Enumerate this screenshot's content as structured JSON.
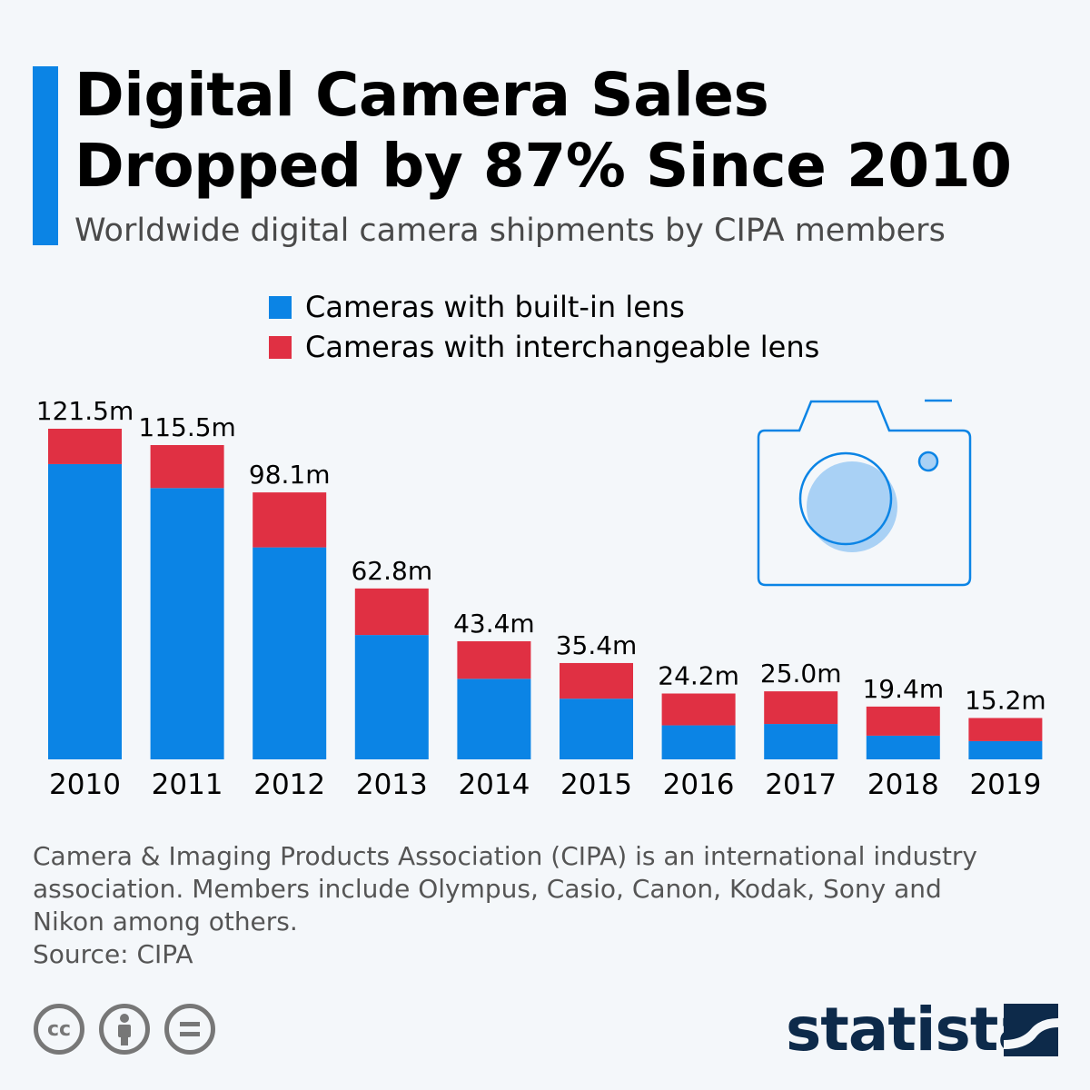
{
  "header": {
    "title_line1": "Digital Camera Sales",
    "title_line2": "Dropped by 87% Since 2010",
    "subtitle": "Worldwide digital camera shipments by CIPA members"
  },
  "chart_data": {
    "type": "bar",
    "stacked": true,
    "categories": [
      "2010",
      "2011",
      "2012",
      "2013",
      "2014",
      "2015",
      "2016",
      "2017",
      "2018",
      "2019"
    ],
    "series": [
      {
        "name": "Cameras with built-in lens",
        "color": "#0b84e5",
        "values": [
          108.5,
          99.7,
          77.9,
          45.7,
          29.6,
          22.3,
          12.5,
          13.0,
          8.7,
          6.7
        ]
      },
      {
        "name": "Cameras with interchangeable lens",
        "color": "#e03043",
        "values": [
          13.0,
          15.8,
          20.2,
          17.1,
          13.8,
          13.1,
          11.7,
          12.0,
          10.7,
          8.5
        ]
      }
    ],
    "totals": [
      121.5,
      115.5,
      98.1,
      62.8,
      43.4,
      35.4,
      24.2,
      25.0,
      19.4,
      15.2
    ],
    "total_labels": [
      "121.5m",
      "115.5m",
      "98.1m",
      "62.8m",
      "43.4m",
      "35.4m",
      "24.2m",
      "25.0m",
      "19.4m",
      "15.2m"
    ],
    "ylim": [
      0,
      121.5
    ],
    "grid": false,
    "legend": "top-center",
    "xlabel": "",
    "ylabel": ""
  },
  "footer": {
    "note": "Camera & Imaging Products Association (CIPA) is an international industry association. Members include Olympus, Casio, Canon, Kodak, Sony and Nikon among others.",
    "source": "Source: CIPA",
    "license_icons": [
      "cc-icon",
      "attribution-icon",
      "no-derivatives-icon"
    ],
    "cc_text": "cc",
    "brand": "statista"
  }
}
